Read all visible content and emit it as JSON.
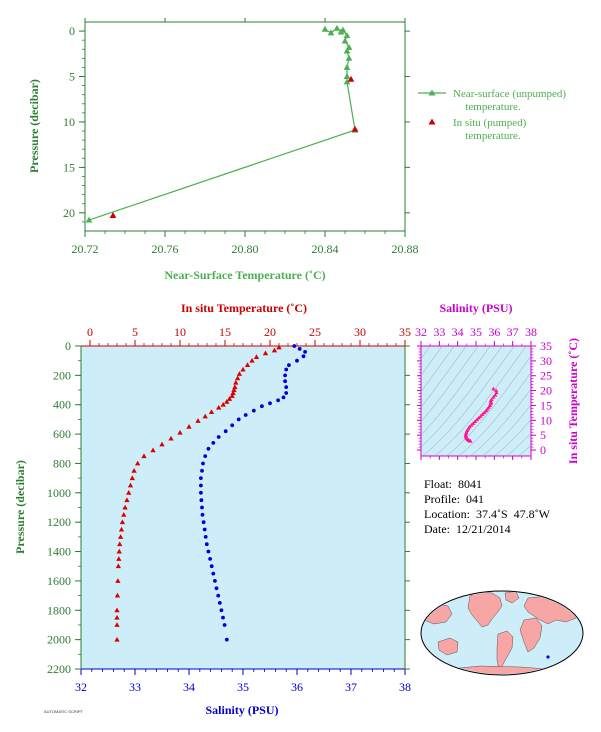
{
  "chart_data": [
    {
      "type": "line",
      "xlabel": "Near-Surface Temperature (˚C)",
      "ylabel": "Pressure (decibar)",
      "xlim": [
        20.72,
        20.88
      ],
      "ylim": [
        22,
        -1
      ],
      "xticks": [
        "20.72",
        "20.76",
        "20.80",
        "20.84",
        "20.88"
      ],
      "yticks": [
        "0",
        "5",
        "10",
        "15",
        "20"
      ],
      "colors": {
        "axis": "#2e7d32",
        "line": "#4caf50",
        "marker": "#cc0000"
      },
      "legend": [
        "Near-surface (unpumped)",
        "temperature.",
        "In situ (pumped)",
        "temperature."
      ],
      "series": [
        {
          "name": "Near-surface (unpumped) temperature.",
          "marker": "triangle",
          "x": [
            20.84,
            20.843,
            20.846,
            20.848,
            20.849,
            20.851,
            20.85,
            20.852,
            20.851,
            20.852,
            20.851,
            20.851,
            20.851,
            20.855,
            20.722
          ],
          "y": [
            -0.2,
            0.2,
            -0.3,
            0.1,
            -0.1,
            0.5,
            1.1,
            1.8,
            2.2,
            3.0,
            4.0,
            5.0,
            5.6,
            10.9,
            20.8
          ]
        },
        {
          "name": "In situ (pumped) temperature.",
          "marker": "triangle",
          "x": [
            20.853,
            20.855,
            20.734
          ],
          "y": [
            5.3,
            10.8,
            20.3
          ]
        }
      ]
    },
    {
      "type": "line",
      "ylabel": "Pressure (decibar)",
      "ylim": [
        2200,
        0
      ],
      "yticks": [
        "0",
        "200",
        "400",
        "600",
        "800",
        "1000",
        "1200",
        "1400",
        "1600",
        "1800",
        "2000",
        "2200"
      ],
      "top_axis": {
        "label": "In situ Temperature (˚C)",
        "ticks": [
          "0",
          "5",
          "10",
          "15",
          "20",
          "25",
          "30",
          "35"
        ],
        "lim": [
          -1,
          35
        ]
      },
      "bottom_axis": {
        "label": "Salinity (PSU)",
        "ticks": [
          "32",
          "33",
          "34",
          "35",
          "36",
          "37",
          "38"
        ],
        "lim": [
          32,
          38
        ]
      },
      "background": "#cdeef8",
      "series": [
        {
          "name": "In situ Temperature",
          "axis": "top",
          "color": "#dd0000",
          "marker": "triangle",
          "x": [
            21.0,
            20.5,
            19.5,
            18.5,
            18.0,
            17.5,
            17.0,
            16.6,
            16.4,
            16.2,
            16.1,
            16.0,
            15.9,
            15.8,
            15.5,
            15.2,
            14.8,
            14.3,
            13.5,
            12.8,
            12.0,
            11.0,
            10.0,
            9.0,
            8.0,
            7.0,
            6.0,
            5.3,
            4.9,
            4.7,
            4.5,
            4.3,
            4.1,
            3.9,
            3.75,
            3.6,
            3.5,
            3.4,
            3.3,
            3.25,
            3.2,
            3.15,
            3.1,
            3.05,
            3.0,
            3.0,
            3.0,
            3.0
          ],
          "y": [
            10,
            30,
            50,
            75,
            100,
            130,
            160,
            190,
            220,
            250,
            280,
            300,
            320,
            340,
            360,
            380,
            400,
            420,
            450,
            480,
            510,
            550,
            590,
            630,
            670,
            710,
            750,
            800,
            850,
            900,
            950,
            1000,
            1050,
            1100,
            1150,
            1200,
            1250,
            1300,
            1350,
            1400,
            1450,
            1500,
            1600,
            1700,
            1800,
            1850,
            1900,
            2000
          ]
        },
        {
          "name": "Salinity",
          "axis": "bottom",
          "color": "#0000dd",
          "marker": "circle",
          "x": [
            35.95,
            36.05,
            36.15,
            36.12,
            36.0,
            35.85,
            35.8,
            35.78,
            35.78,
            35.8,
            35.8,
            35.75,
            35.65,
            35.5,
            35.35,
            35.2,
            35.05,
            34.92,
            34.8,
            34.68,
            34.55,
            34.45,
            34.36,
            34.3,
            34.26,
            34.24,
            34.22,
            34.22,
            34.22,
            34.23,
            34.24,
            34.25,
            34.27,
            34.29,
            34.31,
            34.33,
            34.36,
            34.39,
            34.42,
            34.45,
            34.48,
            34.51,
            34.54,
            34.57,
            34.6,
            34.63,
            34.66,
            34.7
          ],
          "y": [
            0,
            20,
            40,
            70,
            100,
            130,
            160,
            200,
            240,
            280,
            320,
            350,
            370,
            390,
            410,
            440,
            470,
            500,
            540,
            580,
            620,
            660,
            700,
            750,
            800,
            850,
            900,
            950,
            1000,
            1050,
            1100,
            1150,
            1200,
            1250,
            1300,
            1350,
            1400,
            1450,
            1500,
            1550,
            1600,
            1650,
            1700,
            1750,
            1800,
            1850,
            1900,
            2000
          ]
        }
      ]
    },
    {
      "type": "scatter",
      "xlabel_top": "Salinity (PSU)",
      "ylabel": "In situ Temperature (˚C)",
      "xticks": [
        "32",
        "33",
        "34",
        "35",
        "36",
        "37",
        "38"
      ],
      "yticks": [
        "0",
        "5",
        "10",
        "15",
        "20",
        "25",
        "30",
        "35"
      ],
      "xlim": [
        32,
        38
      ],
      "ylim": [
        -2,
        35
      ],
      "color": "#ff1493",
      "series": [
        {
          "name": "T-S profile",
          "x": [
            34.7,
            34.66,
            34.6,
            34.56,
            34.52,
            34.48,
            34.45,
            34.44,
            34.45,
            34.48,
            34.52,
            34.58,
            34.65,
            34.75,
            34.85,
            34.95,
            35.05,
            35.15,
            35.25,
            35.35,
            35.45,
            35.55,
            35.62,
            35.7,
            35.76,
            35.8,
            35.82,
            35.8,
            35.85,
            35.95,
            36.05,
            36.12,
            36.1,
            35.95
          ],
          "y": [
            3.0,
            3.1,
            3.3,
            3.5,
            3.8,
            4.1,
            4.5,
            5.0,
            5.5,
            6.0,
            6.6,
            7.2,
            7.8,
            8.4,
            9.0,
            9.6,
            10.2,
            10.8,
            11.4,
            12.0,
            12.6,
            13.2,
            13.8,
            14.4,
            15.0,
            15.6,
            16.0,
            16.5,
            17.0,
            17.8,
            18.5,
            19.3,
            20.0,
            20.6
          ]
        }
      ]
    }
  ],
  "float_info": {
    "float": "Float:  8041",
    "profile": "Profile:  041",
    "location": "Location:  37.4˚S  47.8˚W",
    "date": "Date:  12/21/2014"
  },
  "footer_text": "AUTOMATIC SCRIPT"
}
